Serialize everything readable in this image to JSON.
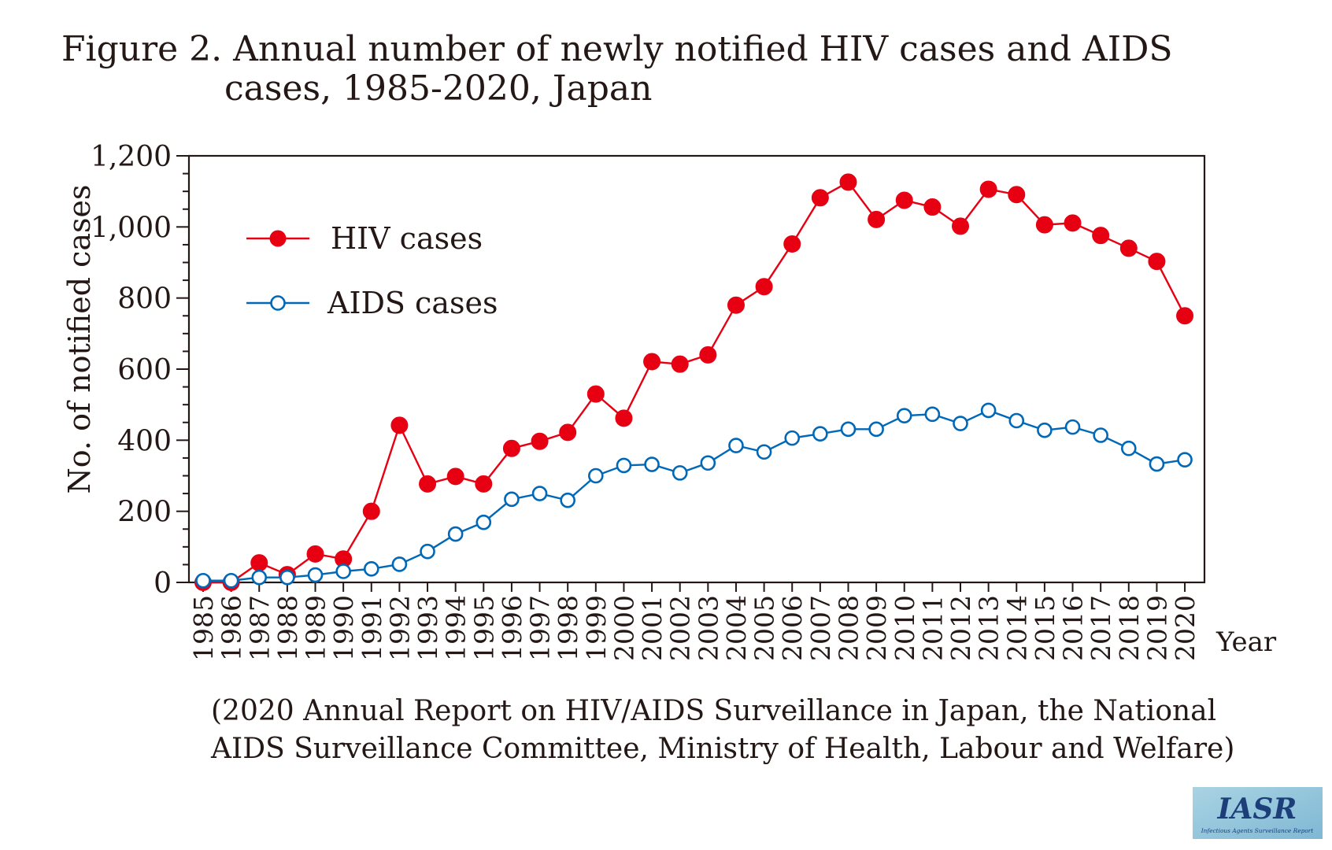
{
  "figure": {
    "title_line1": "Figure 2. Annual number of newly notified HIV cases and AIDS",
    "title_line2": "cases, 1985-2020, Japan",
    "source_line1": "(2020 Annual Report on HIV/AIDS Surveillance in Japan, the National",
    "source_line2": "AIDS Surveillance Committee, Ministry of Health, Labour and Welfare)",
    "logo_text": "IASR",
    "logo_subtext": "Infectious Agents Surveillance Report"
  },
  "chart_data": {
    "type": "line",
    "title": "Figure 2. Annual number of newly notified HIV cases and AIDS cases, 1985-2020, Japan",
    "xlabel": "Year",
    "ylabel": "No. of notified cases",
    "ylim": [
      0,
      1200
    ],
    "yticks": [
      0,
      200,
      400,
      600,
      800,
      1000,
      1200
    ],
    "ytick_labels": [
      "0",
      "200",
      "400",
      "600",
      "800",
      "1,000",
      "1,200"
    ],
    "grid": false,
    "legend_position": "top-left",
    "x": [
      "1985",
      "1986",
      "1987",
      "1988",
      "1989",
      "1990",
      "1991",
      "1992",
      "1993",
      "1994",
      "1995",
      "1996",
      "1997",
      "1998",
      "1999",
      "2000",
      "2001",
      "2002",
      "2003",
      "2004",
      "2005",
      "2006",
      "2007",
      "2008",
      "2009",
      "2010",
      "2011",
      "2012",
      "2013",
      "2014",
      "2015",
      "2016",
      "2017",
      "2018",
      "2019",
      "2020"
    ],
    "series": [
      {
        "name": "HIV cases",
        "color": "#e60012",
        "marker": "filled-circle",
        "values": [
          0,
          0,
          55,
          22,
          80,
          66,
          200,
          442,
          277,
          298,
          277,
          377,
          397,
          422,
          530,
          462,
          621,
          614,
          640,
          780,
          832,
          952,
          1082,
          1126,
          1021,
          1075,
          1056,
          1002,
          1106,
          1091,
          1006,
          1011,
          976,
          940,
          903,
          750
        ]
      },
      {
        "name": "AIDS cases",
        "color": "#0068b7",
        "marker": "open-circle",
        "values": [
          5,
          5,
          14,
          14,
          21,
          31,
          38,
          51,
          87,
          136,
          169,
          234,
          250,
          231,
          300,
          329,
          332,
          308,
          336,
          385,
          367,
          406,
          418,
          431,
          431,
          469,
          473,
          447,
          484,
          455,
          428,
          437,
          414,
          377,
          333,
          345
        ]
      }
    ]
  }
}
